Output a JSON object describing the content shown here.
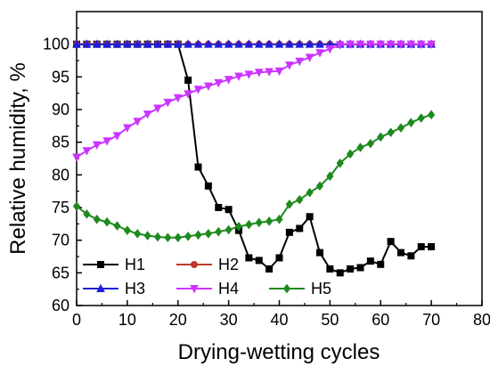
{
  "chart_data": {
    "type": "line",
    "xlabel": "Drying-wetting cycles",
    "ylabel": "Relative humidity, %",
    "xlim": [
      0,
      80
    ],
    "ylim": [
      60,
      105
    ],
    "xticks": [
      0,
      10,
      20,
      30,
      40,
      50,
      60,
      70,
      80
    ],
    "yticks": [
      60,
      65,
      70,
      75,
      80,
      85,
      90,
      95,
      100
    ],
    "grid": false,
    "legend_position": "bottom-left",
    "series": [
      {
        "name": "H1",
        "color": "#000000",
        "marker": "square",
        "x": [
          0,
          2,
          4,
          6,
          8,
          10,
          12,
          14,
          16,
          18,
          20,
          22,
          24,
          26,
          28,
          30,
          32,
          34,
          36,
          38,
          40,
          42,
          44,
          46,
          48,
          50,
          52,
          54,
          56,
          58,
          60,
          62,
          64,
          66,
          68,
          70
        ],
        "y": [
          100,
          100,
          100,
          100,
          100,
          100,
          100,
          100,
          100,
          100,
          100,
          94.5,
          81.2,
          78.3,
          75.0,
          74.7,
          71.5,
          67.3,
          66.9,
          65.6,
          67.3,
          71.2,
          71.8,
          73.6,
          68.1,
          65.6,
          65.0,
          65.6,
          65.8,
          66.8,
          66.3,
          69.8,
          68.1,
          67.6,
          69.0,
          69.0
        ]
      },
      {
        "name": "H2",
        "color": "#c0392b",
        "marker": "circle",
        "x": [
          0,
          2,
          4,
          6,
          8,
          10,
          12,
          14,
          16,
          18,
          20,
          22,
          24,
          26,
          28,
          30,
          32,
          34,
          36,
          38,
          40,
          42,
          44,
          46,
          48,
          50,
          52,
          54,
          56,
          58,
          60,
          62,
          64,
          66,
          68,
          70
        ],
        "y": [
          100,
          100,
          100,
          100,
          100,
          100,
          100,
          100,
          100,
          100,
          100,
          100,
          100,
          100,
          100,
          100,
          100,
          100,
          100,
          100,
          100,
          100,
          100,
          100,
          100,
          100,
          100,
          100,
          100,
          100,
          100,
          100,
          100,
          100,
          100,
          100
        ]
      },
      {
        "name": "H3",
        "color": "#1f1fd6",
        "marker": "triangle-up",
        "x": [
          0,
          2,
          4,
          6,
          8,
          10,
          12,
          14,
          16,
          18,
          20,
          22,
          24,
          26,
          28,
          30,
          32,
          34,
          36,
          38,
          40,
          42,
          44,
          46,
          48,
          50,
          52,
          54,
          56,
          58,
          60,
          62,
          64,
          66,
          68,
          70
        ],
        "y": [
          100,
          100,
          100,
          100,
          100,
          100,
          100,
          100,
          100,
          100,
          100,
          100,
          100,
          100,
          100,
          100,
          100,
          100,
          100,
          100,
          100,
          100,
          100,
          100,
          100,
          100,
          100,
          100,
          100,
          100,
          100,
          100,
          100,
          100,
          100,
          100
        ]
      },
      {
        "name": "H4",
        "color": "#cc33ff",
        "marker": "triangle-down",
        "x": [
          0,
          2,
          4,
          6,
          8,
          10,
          12,
          14,
          16,
          18,
          20,
          22,
          24,
          26,
          28,
          30,
          32,
          34,
          36,
          38,
          40,
          42,
          44,
          46,
          48,
          50,
          52,
          54,
          56,
          58,
          60,
          62,
          64,
          66,
          68,
          70
        ],
        "y": [
          82.7,
          83.7,
          84.6,
          85.2,
          86.0,
          87.2,
          88.2,
          89.3,
          90.2,
          91.1,
          91.8,
          92.4,
          93.1,
          93.6,
          94.1,
          94.6,
          95.1,
          95.4,
          95.7,
          95.8,
          95.9,
          96.8,
          97.4,
          98.0,
          98.7,
          99.3,
          99.9,
          100,
          100,
          100,
          100,
          100,
          100,
          100,
          100,
          100
        ]
      },
      {
        "name": "H5",
        "color": "#1e8a1e",
        "marker": "diamond",
        "x": [
          0,
          2,
          4,
          6,
          8,
          10,
          12,
          14,
          16,
          18,
          20,
          22,
          24,
          26,
          28,
          30,
          32,
          34,
          36,
          38,
          40,
          42,
          44,
          46,
          48,
          50,
          52,
          54,
          56,
          58,
          60,
          62,
          64,
          66,
          68,
          70
        ],
        "y": [
          75.2,
          74.0,
          73.2,
          72.8,
          72.2,
          71.5,
          71.0,
          70.7,
          70.5,
          70.4,
          70.4,
          70.6,
          70.8,
          71.0,
          71.3,
          71.6,
          72.1,
          72.4,
          72.7,
          72.9,
          73.2,
          75.5,
          76.2,
          77.3,
          78.3,
          79.8,
          81.8,
          83.2,
          84.2,
          84.8,
          85.8,
          86.5,
          87.2,
          88.0,
          88.7,
          89.2
        ]
      }
    ]
  }
}
